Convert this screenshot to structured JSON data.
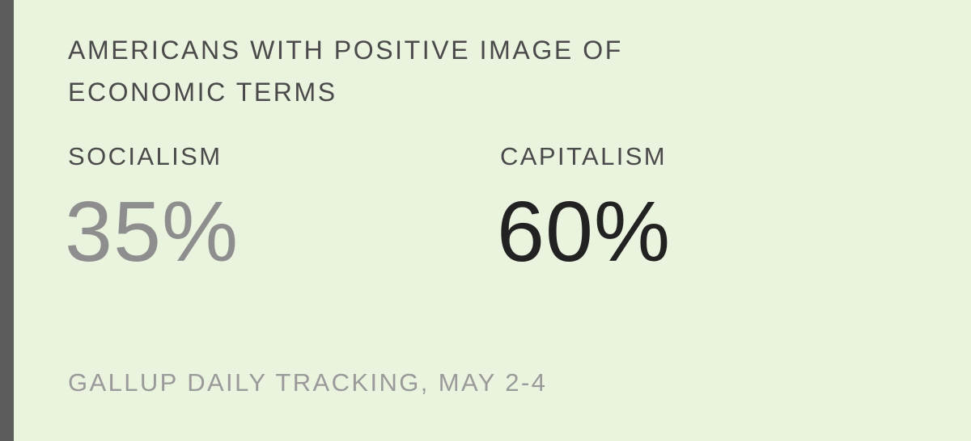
{
  "chart_data": {
    "type": "table",
    "title": "AMERICANS WITH POSITIVE IMAGE OF ECONOMIC TERMS",
    "categories": [
      "SOCIALISM",
      "CAPITALISM"
    ],
    "values": [
      35,
      60
    ],
    "value_labels": [
      "35%",
      "60%"
    ],
    "colors": [
      "#8e8e8e",
      "#222222"
    ],
    "source": "GALLUP DAILY TRACKING, MAY 2-4"
  },
  "theme": {
    "background": "#eaf3de",
    "sidebar": "#5c5c5c",
    "label_color": "#4a4a4a",
    "source_color": "#9a9a9a"
  }
}
